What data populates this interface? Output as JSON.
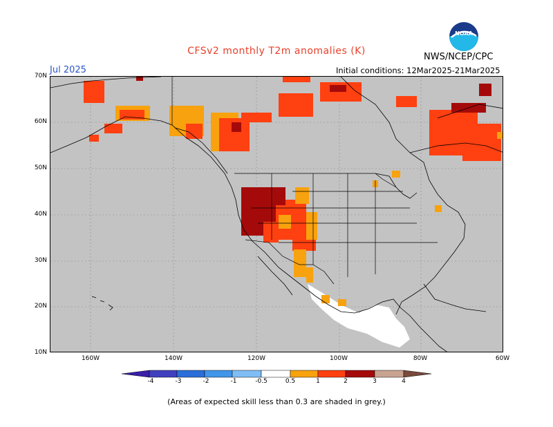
{
  "header": {
    "title": "CFSv2 monthly T2m anomalies (K)",
    "target_month": "Jul 2025",
    "source": "NWS/NCEP/CPC",
    "initial_conditions": "Initial conditions: 12Mar2025-21Mar2025",
    "logo_text": "NOAA"
  },
  "map": {
    "region": "North America",
    "lat_range": [
      10,
      70
    ],
    "lon_range": [
      -190,
      -80
    ],
    "lat_labels": [
      "70N",
      "60N",
      "50N",
      "40N",
      "30N",
      "20N",
      "10N"
    ],
    "lon_labels": [
      "160W",
      "140W",
      "120W",
      "100W",
      "80W",
      "60W"
    ],
    "background_color": "#c3c3c3",
    "boundary_color": "#000000"
  },
  "legend": {
    "tick_labels": [
      "-4",
      "-3",
      "-2",
      "-1",
      "-0.5",
      "0.5",
      "1",
      "2",
      "3",
      "4"
    ],
    "colors": {
      "lt_-4": "#3a1fa8",
      "-4_-3": "#3f3fbf",
      "-3_-2": "#2a6ed8",
      "-2_-1": "#3f96ea",
      "-1_-0.5": "#7fbdf5",
      "-0.5_0.5": "#ffffff",
      "0.5_1": "#f7a20e",
      "1_2": "#ff4010",
      "2_3": "#a50a0a",
      "3_4": "#c9a391",
      "gt_4": "#7a4a3c"
    },
    "footnote": "(Areas of expected skill less than 0.3 are shaded in grey.)"
  }
}
